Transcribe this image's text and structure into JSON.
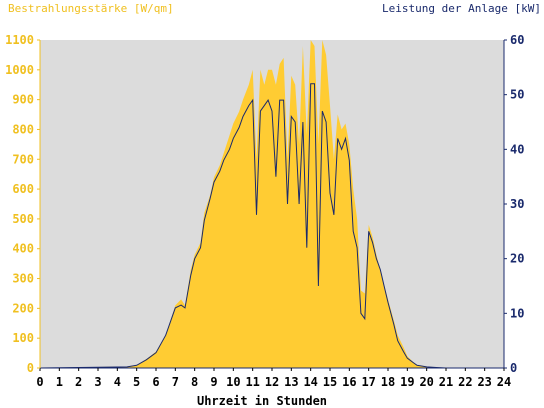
{
  "chart_data": {
    "type": "area",
    "title_left": "Bestrahlungsstärke [W/qm]",
    "title_right": "Leistung der Anlage [kW]",
    "xlabel": "Uhrzeit in Stunden",
    "x_ticks": [
      "0",
      "1",
      "2",
      "3",
      "4",
      "5",
      "6",
      "7",
      "8",
      "9",
      "10",
      "11",
      "12",
      "13",
      "14",
      "15",
      "16",
      "17",
      "18",
      "19",
      "20",
      "21",
      "22",
      "23",
      "24"
    ],
    "y_left_ticks": [
      "0",
      "100",
      "200",
      "300",
      "400",
      "500",
      "600",
      "700",
      "800",
      "900",
      "1000",
      "1100"
    ],
    "y_right_ticks": [
      "0",
      "10",
      "20",
      "30",
      "40",
      "50",
      "60"
    ],
    "ylim_left": [
      0,
      1100
    ],
    "ylim_right": [
      0,
      60
    ],
    "xlim": [
      0,
      24
    ],
    "colors": {
      "irradiance": "#ffcc33",
      "power": "#1a2a6c",
      "left_axis_text": "#f0c020",
      "right_axis_text": "#1a2a6c",
      "plot_background": "#dcdcdc"
    },
    "series": [
      {
        "name": "Bestrahlungsstärke",
        "axis": "left",
        "x": [
          0,
          4.5,
          5,
          5.5,
          6,
          6.5,
          7,
          7.3,
          7.5,
          7.8,
          8,
          8.3,
          8.5,
          8.8,
          9,
          9.3,
          9.5,
          9.8,
          10,
          10.3,
          10.5,
          10.8,
          11,
          11.2,
          11.4,
          11.6,
          11.8,
          12,
          12.2,
          12.4,
          12.6,
          12.8,
          13,
          13.2,
          13.4,
          13.6,
          13.8,
          14,
          14.2,
          14.4,
          14.6,
          14.8,
          15,
          15.2,
          15.4,
          15.6,
          15.8,
          16,
          16.2,
          16.4,
          16.6,
          16.8,
          17,
          17.2,
          17.4,
          17.6,
          17.8,
          18,
          18.3,
          18.5,
          18.8,
          19,
          19.3,
          19.5,
          20,
          20.5,
          21,
          24
        ],
        "y": [
          0,
          5,
          10,
          30,
          55,
          110,
          210,
          230,
          210,
          330,
          380,
          420,
          520,
          580,
          640,
          680,
          720,
          780,
          820,
          860,
          900,
          950,
          1000,
          700,
          1000,
          950,
          1000,
          1000,
          950,
          1020,
          1040,
          700,
          980,
          950,
          750,
          1080,
          780,
          1100,
          1080,
          750,
          1100,
          1050,
          880,
          700,
          850,
          800,
          820,
          750,
          600,
          500,
          260,
          250,
          480,
          440,
          380,
          330,
          280,
          230,
          160,
          110,
          70,
          40,
          20,
          10,
          5,
          2,
          0,
          0
        ]
      },
      {
        "name": "Leistung der Anlage",
        "axis": "right",
        "x": [
          0,
          4.5,
          5,
          5.5,
          6,
          6.5,
          7,
          7.3,
          7.5,
          7.8,
          8,
          8.3,
          8.5,
          8.8,
          9,
          9.3,
          9.5,
          9.8,
          10,
          10.3,
          10.5,
          10.8,
          11,
          11.2,
          11.4,
          11.6,
          11.8,
          12,
          12.2,
          12.4,
          12.6,
          12.8,
          13,
          13.2,
          13.4,
          13.6,
          13.8,
          14,
          14.2,
          14.4,
          14.6,
          14.8,
          15,
          15.2,
          15.4,
          15.6,
          15.8,
          16,
          16.2,
          16.4,
          16.6,
          16.8,
          17,
          17.2,
          17.4,
          17.6,
          17.8,
          18,
          18.3,
          18.5,
          18.8,
          19,
          19.3,
          19.5,
          20,
          20.5,
          21,
          24
        ],
        "y": [
          0,
          0.2,
          0.5,
          1.5,
          2.8,
          6,
          11,
          11.5,
          11,
          17,
          20,
          22,
          27,
          31,
          34,
          36,
          38,
          40,
          42,
          44,
          46,
          48,
          49,
          28,
          47,
          48,
          49,
          47,
          35,
          49,
          49,
          30,
          46,
          45,
          30,
          45,
          22,
          52,
          52,
          15,
          47,
          45,
          32,
          28,
          42,
          40,
          42,
          38,
          25,
          22,
          10,
          9,
          25,
          23,
          20,
          18,
          15,
          12,
          8,
          5,
          3,
          1.8,
          1,
          0.5,
          0.2,
          0.1,
          0,
          0
        ]
      }
    ]
  }
}
